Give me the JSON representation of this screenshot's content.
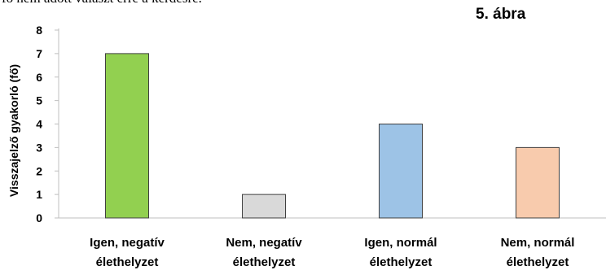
{
  "header": {
    "top_text": "fő nem adott választ erre a kérdésre.",
    "figure_label": "5. ábra"
  },
  "chart_data": {
    "type": "bar",
    "title": "",
    "xlabel": "",
    "ylabel": "Visszajelző gyakorló (fő)",
    "categories": [
      [
        "Igen, negatív",
        "élethelyzet"
      ],
      [
        "Nem, negatív",
        "élethelyzet"
      ],
      [
        "Igen, normál",
        "élethelyzet"
      ],
      [
        "Nem, normál",
        "élethelyzet"
      ]
    ],
    "values": [
      7,
      1,
      4,
      3
    ],
    "colors": [
      "#92d050",
      "#d9d9d9",
      "#9dc3e6",
      "#f8cbad"
    ],
    "ylim": [
      0,
      8
    ],
    "yticks": [
      0,
      1,
      2,
      3,
      4,
      5,
      6,
      7,
      8
    ],
    "grid": false,
    "legend": "none"
  }
}
